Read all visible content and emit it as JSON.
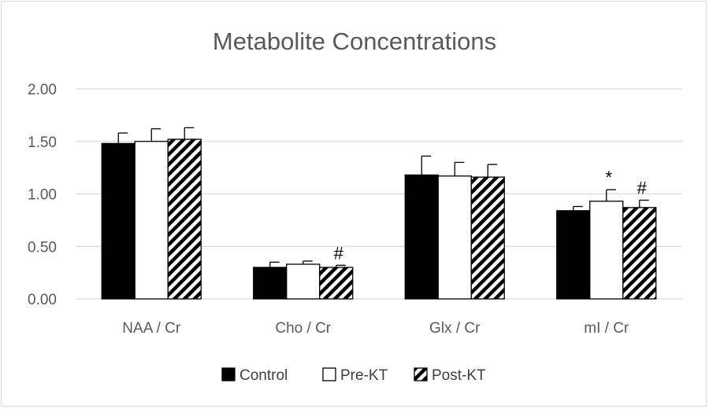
{
  "chart_data": {
    "type": "bar",
    "title": "Metabolite Concentrations",
    "xlabel": "",
    "ylabel": "",
    "categories": [
      "NAA / Cr",
      "Cho / Cr",
      "Glx / Cr",
      "mI / Cr"
    ],
    "yticks": [
      "0.00",
      "0.50",
      "1.00",
      "1.50",
      "2.00"
    ],
    "ylim": [
      0,
      2
    ],
    "grid": true,
    "legend_position": "bottom",
    "series": [
      {
        "name": "Control",
        "values": [
          1.48,
          0.3,
          1.18,
          0.84
        ],
        "errors": [
          0.1,
          0.05,
          0.18,
          0.04
        ],
        "fill": "solid",
        "color": "#000000"
      },
      {
        "name": "Pre-KT",
        "values": [
          1.5,
          0.33,
          1.17,
          0.93
        ],
        "errors": [
          0.12,
          0.03,
          0.13,
          0.11
        ],
        "fill": "empty",
        "color": "#ffffff"
      },
      {
        "name": "Post-KT",
        "values": [
          1.52,
          0.3,
          1.16,
          0.87
        ],
        "errors": [
          0.11,
          0.02,
          0.12,
          0.07
        ],
        "fill": "hatched",
        "color": "#000000"
      }
    ],
    "annotations": [
      {
        "category": "Cho / Cr",
        "series": "Post-KT",
        "text": "#"
      },
      {
        "category": "mI / Cr",
        "series": "Pre-KT",
        "text": "*"
      },
      {
        "category": "mI / Cr",
        "series": "Post-KT",
        "text": "#"
      }
    ]
  }
}
